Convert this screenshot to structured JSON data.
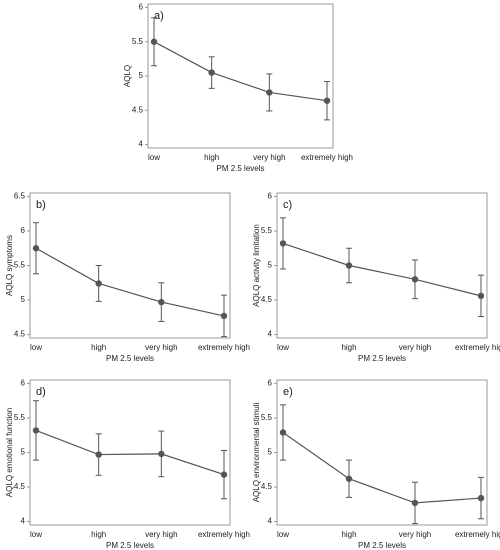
{
  "chart_data": [
    {
      "type": "line",
      "title": "a)",
      "ylabel": "AQLQ",
      "xlabel": "PM 2.5 levels",
      "categories": [
        "low",
        "high",
        "very high",
        "extremely high"
      ],
      "ylim": [
        3.95,
        6.05
      ],
      "yticks": [
        4,
        4.5,
        5,
        5.5,
        6
      ],
      "series": [
        {
          "color": "#555555",
          "values": [
            5.5,
            5.05,
            4.76,
            4.64
          ],
          "errors": [
            0.35,
            0.23,
            0.27,
            0.28
          ]
        }
      ]
    },
    {
      "type": "line",
      "title": "b)",
      "ylabel": "AQLQ symptoms",
      "xlabel": "PM 2.5 levels",
      "categories": [
        "low",
        "high",
        "very high",
        "extremely high"
      ],
      "ylim": [
        4.45,
        6.55
      ],
      "yticks": [
        4.5,
        5,
        5.5,
        6,
        6.5
      ],
      "series": [
        {
          "color": "#555555",
          "values": [
            5.75,
            5.24,
            4.97,
            4.77
          ],
          "errors": [
            0.37,
            0.26,
            0.28,
            0.3
          ]
        }
      ]
    },
    {
      "type": "line",
      "title": "c)",
      "ylabel": "AQLQ activity limitation",
      "xlabel": "PM 2.5 levels",
      "categories": [
        "low",
        "high",
        "very high",
        "extremely high"
      ],
      "ylim": [
        3.95,
        6.05
      ],
      "yticks": [
        4,
        4.5,
        5,
        5.5,
        6
      ],
      "series": [
        {
          "color": "#555555",
          "values": [
            5.32,
            5.0,
            4.8,
            4.56
          ],
          "errors": [
            0.37,
            0.25,
            0.28,
            0.3
          ]
        }
      ]
    },
    {
      "type": "line",
      "title": "d)",
      "ylabel": "AQLQ emotional function",
      "xlabel": "PM 2.5 levels",
      "categories": [
        "low",
        "high",
        "very high",
        "extremely high"
      ],
      "ylim": [
        3.95,
        6.05
      ],
      "yticks": [
        4,
        4.5,
        5,
        5.5,
        6
      ],
      "series": [
        {
          "color": "#555555",
          "values": [
            5.32,
            4.97,
            4.98,
            4.68
          ],
          "errors": [
            0.43,
            0.3,
            0.33,
            0.35
          ]
        }
      ]
    },
    {
      "type": "line",
      "title": "e)",
      "ylabel": "AQLQ environmental stimuli",
      "xlabel": "PM 2.5 levels",
      "categories": [
        "low",
        "high",
        "very high",
        "extremely high"
      ],
      "ylim": [
        3.95,
        6.05
      ],
      "yticks": [
        4,
        4.5,
        5,
        5.5,
        6
      ],
      "series": [
        {
          "color": "#555555",
          "values": [
            5.29,
            4.62,
            4.27,
            4.34
          ],
          "errors": [
            0.4,
            0.27,
            0.3,
            0.3
          ]
        }
      ]
    }
  ]
}
